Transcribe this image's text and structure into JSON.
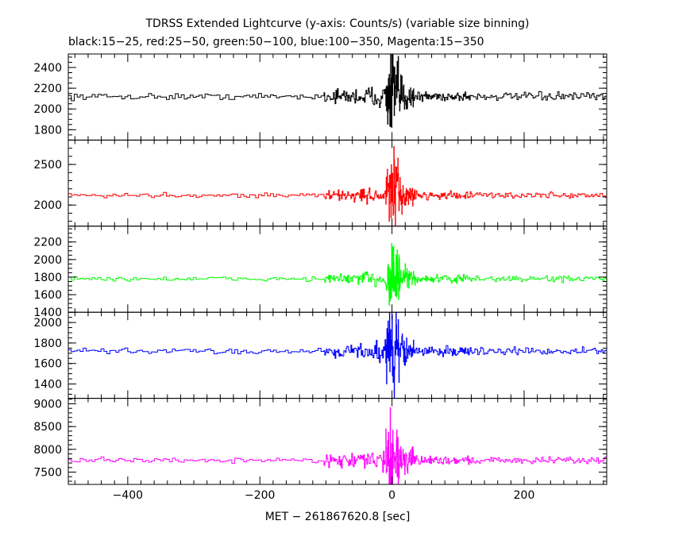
{
  "chart_data": {
    "type": "line",
    "title": "TDRSS Extended Lightcurve (y-axis: Counts/s) (variable size binning)",
    "subtitle": "black:15−25, red:25−50, green:50−100, blue:100−350, Magenta:15−350",
    "xlabel": "MET − 261867620.8 [sec]",
    "xlim": [
      -490,
      325
    ],
    "x_ticks": [
      -400,
      -200,
      0,
      200
    ],
    "x_tick_labels": [
      "−400",
      "−200",
      "0",
      "200"
    ],
    "panels": [
      {
        "name": "15-25",
        "color": "#000000",
        "ylim": [
          1700,
          2530
        ],
        "y_ticks": [
          1800,
          2000,
          2200,
          2400
        ],
        "baseline": 2120,
        "quiet_noise": 18,
        "active_noise": 55,
        "peak_amp": 330
      },
      {
        "name": "25-50",
        "color": "#ff0000",
        "ylim": [
          1740,
          2800
        ],
        "y_ticks": [
          2000,
          2500
        ],
        "baseline": 2120,
        "quiet_noise": 18,
        "active_noise": 55,
        "peak_amp": 420
      },
      {
        "name": "50-100",
        "color": "#00ff00",
        "ylim": [
          1400,
          2380
        ],
        "y_ticks": [
          1400,
          1600,
          1800,
          2000,
          2200
        ],
        "baseline": 1780,
        "quiet_noise": 16,
        "active_noise": 50,
        "peak_amp": 330
      },
      {
        "name": "100-350",
        "color": "#0000ff",
        "ylim": [
          1260,
          2100
        ],
        "y_ticks": [
          1400,
          1600,
          1800,
          2000
        ],
        "baseline": 1720,
        "quiet_noise": 16,
        "active_noise": 55,
        "peak_amp": 330
      },
      {
        "name": "15-350",
        "color": "#ff00ff",
        "ylim": [
          7230,
          9120
        ],
        "y_ticks": [
          7500,
          8000,
          8500,
          9000
        ],
        "baseline": 7760,
        "quiet_noise": 35,
        "active_noise": 110,
        "peak_amp": 850
      }
    ]
  }
}
